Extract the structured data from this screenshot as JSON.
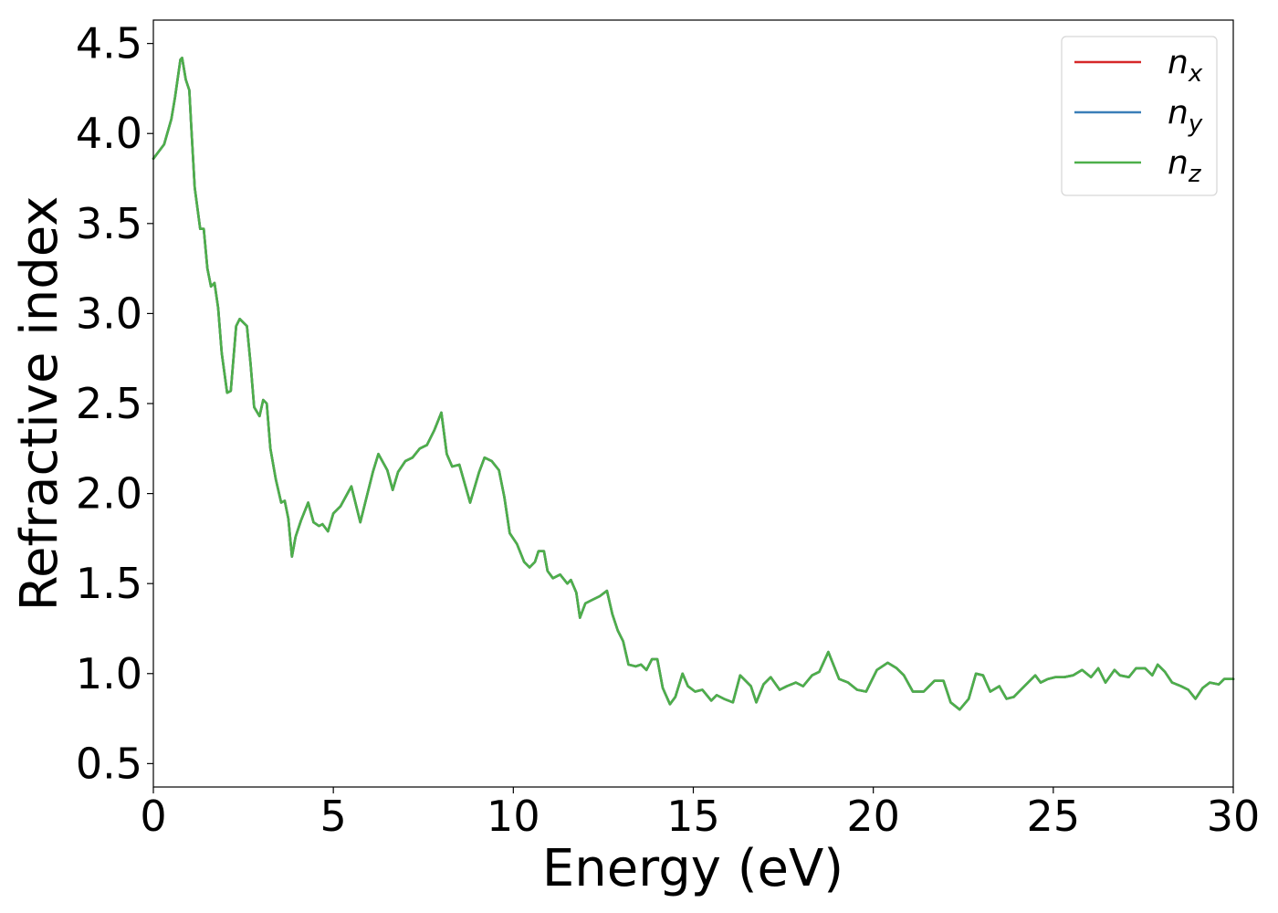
{
  "chart_data": {
    "type": "line",
    "xlabel": "Energy (eV)",
    "ylabel": "Refractive index",
    "xlim": [
      0,
      30
    ],
    "ylim": [
      0.37,
      4.63
    ],
    "xticks": [
      0,
      5,
      10,
      15,
      20,
      25,
      30
    ],
    "xtick_labels": [
      "0",
      "5",
      "10",
      "15",
      "20",
      "25",
      "30"
    ],
    "yticks": [
      0.5,
      1.0,
      1.5,
      2.0,
      2.5,
      3.0,
      3.5,
      4.0,
      4.5
    ],
    "ytick_labels": [
      "0.5",
      "1.0",
      "1.5",
      "2.0",
      "2.5",
      "3.0",
      "3.5",
      "4.0",
      "4.5"
    ],
    "grid": false,
    "legend_position": "top-right",
    "x": [
      0,
      0.3,
      0.5,
      0.6,
      0.75,
      0.8,
      0.9,
      1.0,
      1.05,
      1.15,
      1.3,
      1.4,
      1.5,
      1.6,
      1.7,
      1.8,
      1.9,
      2.05,
      2.15,
      2.3,
      2.4,
      2.5,
      2.6,
      2.7,
      2.8,
      2.95,
      3.05,
      3.15,
      3.25,
      3.4,
      3.55,
      3.65,
      3.75,
      3.85,
      3.95,
      4.1,
      4.3,
      4.45,
      4.6,
      4.7,
      4.85,
      5.0,
      5.2,
      5.5,
      5.75,
      6.1,
      6.25,
      6.5,
      6.65,
      6.8,
      7.0,
      7.2,
      7.4,
      7.6,
      7.8,
      8.0,
      8.15,
      8.3,
      8.5,
      8.8,
      9.05,
      9.2,
      9.4,
      9.6,
      9.75,
      9.9,
      10.1,
      10.3,
      10.45,
      10.6,
      10.7,
      10.85,
      10.95,
      11.1,
      11.3,
      11.5,
      11.6,
      11.75,
      11.85,
      12.0,
      12.2,
      12.4,
      12.6,
      12.75,
      12.9,
      13.05,
      13.2,
      13.4,
      13.55,
      13.7,
      13.85,
      14.0,
      14.15,
      14.35,
      14.5,
      14.7,
      14.85,
      15.05,
      15.25,
      15.5,
      15.65,
      15.85,
      16.1,
      16.3,
      16.6,
      16.75,
      16.95,
      17.15,
      17.4,
      17.6,
      17.85,
      18.05,
      18.3,
      18.5,
      18.75,
      19.05,
      19.3,
      19.55,
      19.8,
      20.1,
      20.4,
      20.65,
      20.85,
      21.1,
      21.4,
      21.7,
      21.95,
      22.15,
      22.4,
      22.65,
      22.85,
      23.05,
      23.25,
      23.5,
      23.7,
      23.9,
      24.1,
      24.3,
      24.5,
      24.65,
      24.85,
      25.05,
      25.3,
      25.55,
      25.8,
      26.05,
      26.25,
      26.45,
      26.7,
      26.85,
      27.1,
      27.3,
      27.55,
      27.75,
      27.9,
      28.1,
      28.3,
      28.55,
      28.75,
      28.95,
      29.15,
      29.35,
      29.6,
      29.75,
      30.0
    ],
    "series": [
      {
        "name": "n_x",
        "label_base": "n",
        "label_sub": "x",
        "color": "#d62728",
        "values": [
          3.86,
          3.94,
          4.08,
          4.2,
          4.41,
          4.42,
          4.3,
          4.24,
          4.05,
          3.7,
          3.47,
          3.47,
          3.25,
          3.15,
          3.17,
          3.03,
          2.78,
          2.56,
          2.57,
          2.93,
          2.97,
          2.95,
          2.93,
          2.72,
          2.48,
          2.43,
          2.52,
          2.5,
          2.25,
          2.08,
          1.95,
          1.96,
          1.86,
          1.65,
          1.76,
          1.85,
          1.95,
          1.84,
          1.82,
          1.83,
          1.79,
          1.89,
          1.93,
          2.04,
          1.84,
          2.12,
          2.22,
          2.13,
          2.02,
          2.12,
          2.18,
          2.2,
          2.25,
          2.27,
          2.35,
          2.45,
          2.22,
          2.15,
          2.16,
          1.95,
          2.12,
          2.2,
          2.18,
          2.13,
          1.98,
          1.78,
          1.72,
          1.62,
          1.59,
          1.62,
          1.68,
          1.68,
          1.57,
          1.53,
          1.55,
          1.5,
          1.52,
          1.45,
          1.31,
          1.39,
          1.41,
          1.43,
          1.46,
          1.33,
          1.24,
          1.18,
          1.05,
          1.04,
          1.05,
          1.02,
          1.08,
          1.08,
          0.92,
          0.83,
          0.87,
          1.0,
          0.93,
          0.9,
          0.91,
          0.85,
          0.88,
          0.86,
          0.84,
          0.99,
          0.93,
          0.84,
          0.94,
          0.98,
          0.91,
          0.93,
          0.95,
          0.93,
          0.99,
          1.01,
          1.12,
          0.97,
          0.95,
          0.91,
          0.9,
          1.02,
          1.06,
          1.03,
          0.99,
          0.9,
          0.9,
          0.96,
          0.96,
          0.84,
          0.8,
          0.86,
          1.0,
          0.99,
          0.9,
          0.93,
          0.86,
          0.87,
          0.91,
          0.95,
          0.99,
          0.95,
          0.97,
          0.98,
          0.98,
          0.99,
          1.02,
          0.98,
          1.03,
          0.95,
          1.02,
          0.99,
          0.98,
          1.03,
          1.03,
          0.99,
          1.05,
          1.01,
          0.95,
          0.93,
          0.91,
          0.86,
          0.92,
          0.95,
          0.94,
          0.97,
          0.97
        ]
      },
      {
        "name": "n_y",
        "label_base": "n",
        "label_sub": "y",
        "color": "#3a7fb8",
        "values": [
          3.86,
          3.94,
          4.08,
          4.2,
          4.41,
          4.42,
          4.3,
          4.24,
          4.05,
          3.7,
          3.47,
          3.47,
          3.25,
          3.15,
          3.17,
          3.03,
          2.78,
          2.56,
          2.57,
          2.93,
          2.97,
          2.95,
          2.93,
          2.72,
          2.48,
          2.43,
          2.52,
          2.5,
          2.25,
          2.08,
          1.95,
          1.96,
          1.86,
          1.65,
          1.76,
          1.85,
          1.95,
          1.84,
          1.82,
          1.83,
          1.79,
          1.89,
          1.93,
          2.04,
          1.84,
          2.12,
          2.22,
          2.13,
          2.02,
          2.12,
          2.18,
          2.2,
          2.25,
          2.27,
          2.35,
          2.45,
          2.22,
          2.15,
          2.16,
          1.95,
          2.12,
          2.2,
          2.18,
          2.13,
          1.98,
          1.78,
          1.72,
          1.62,
          1.59,
          1.62,
          1.68,
          1.68,
          1.57,
          1.53,
          1.55,
          1.5,
          1.52,
          1.45,
          1.31,
          1.39,
          1.41,
          1.43,
          1.46,
          1.33,
          1.24,
          1.18,
          1.05,
          1.04,
          1.05,
          1.02,
          1.08,
          1.08,
          0.92,
          0.83,
          0.87,
          1.0,
          0.93,
          0.9,
          0.91,
          0.85,
          0.88,
          0.86,
          0.84,
          0.99,
          0.93,
          0.84,
          0.94,
          0.98,
          0.91,
          0.93,
          0.95,
          0.93,
          0.99,
          1.01,
          1.12,
          0.97,
          0.95,
          0.91,
          0.9,
          1.02,
          1.06,
          1.03,
          0.99,
          0.9,
          0.9,
          0.96,
          0.96,
          0.84,
          0.8,
          0.86,
          1.0,
          0.99,
          0.9,
          0.93,
          0.86,
          0.87,
          0.91,
          0.95,
          0.99,
          0.95,
          0.97,
          0.98,
          0.98,
          0.99,
          1.02,
          0.98,
          1.03,
          0.95,
          1.02,
          0.99,
          0.98,
          1.03,
          1.03,
          0.99,
          1.05,
          1.01,
          0.95,
          0.93,
          0.91,
          0.86,
          0.92,
          0.95,
          0.94,
          0.97,
          0.97
        ]
      },
      {
        "name": "n_z",
        "label_base": "n",
        "label_sub": "z",
        "color": "#4daf4a",
        "values": [
          3.86,
          3.94,
          4.08,
          4.2,
          4.41,
          4.42,
          4.3,
          4.24,
          4.05,
          3.7,
          3.47,
          3.47,
          3.25,
          3.15,
          3.17,
          3.03,
          2.78,
          2.56,
          2.57,
          2.93,
          2.97,
          2.95,
          2.93,
          2.72,
          2.48,
          2.43,
          2.52,
          2.5,
          2.25,
          2.08,
          1.95,
          1.96,
          1.86,
          1.65,
          1.76,
          1.85,
          1.95,
          1.84,
          1.82,
          1.83,
          1.79,
          1.89,
          1.93,
          2.04,
          1.84,
          2.12,
          2.22,
          2.13,
          2.02,
          2.12,
          2.18,
          2.2,
          2.25,
          2.27,
          2.35,
          2.45,
          2.22,
          2.15,
          2.16,
          1.95,
          2.12,
          2.2,
          2.18,
          2.13,
          1.98,
          1.78,
          1.72,
          1.62,
          1.59,
          1.62,
          1.68,
          1.68,
          1.57,
          1.53,
          1.55,
          1.5,
          1.52,
          1.45,
          1.31,
          1.39,
          1.41,
          1.43,
          1.46,
          1.33,
          1.24,
          1.18,
          1.05,
          1.04,
          1.05,
          1.02,
          1.08,
          1.08,
          0.92,
          0.83,
          0.87,
          1.0,
          0.93,
          0.9,
          0.91,
          0.85,
          0.88,
          0.86,
          0.84,
          0.99,
          0.93,
          0.84,
          0.94,
          0.98,
          0.91,
          0.93,
          0.95,
          0.93,
          0.99,
          1.01,
          1.12,
          0.97,
          0.95,
          0.91,
          0.9,
          1.02,
          1.06,
          1.03,
          0.99,
          0.9,
          0.9,
          0.96,
          0.96,
          0.84,
          0.8,
          0.86,
          1.0,
          0.99,
          0.9,
          0.93,
          0.86,
          0.87,
          0.91,
          0.95,
          0.99,
          0.95,
          0.97,
          0.98,
          0.98,
          0.99,
          1.02,
          0.98,
          1.03,
          0.95,
          1.02,
          0.99,
          0.98,
          1.03,
          1.03,
          0.99,
          1.05,
          1.01,
          0.95,
          0.93,
          0.91,
          0.86,
          0.92,
          0.95,
          0.94,
          0.97,
          0.97
        ]
      }
    ]
  }
}
